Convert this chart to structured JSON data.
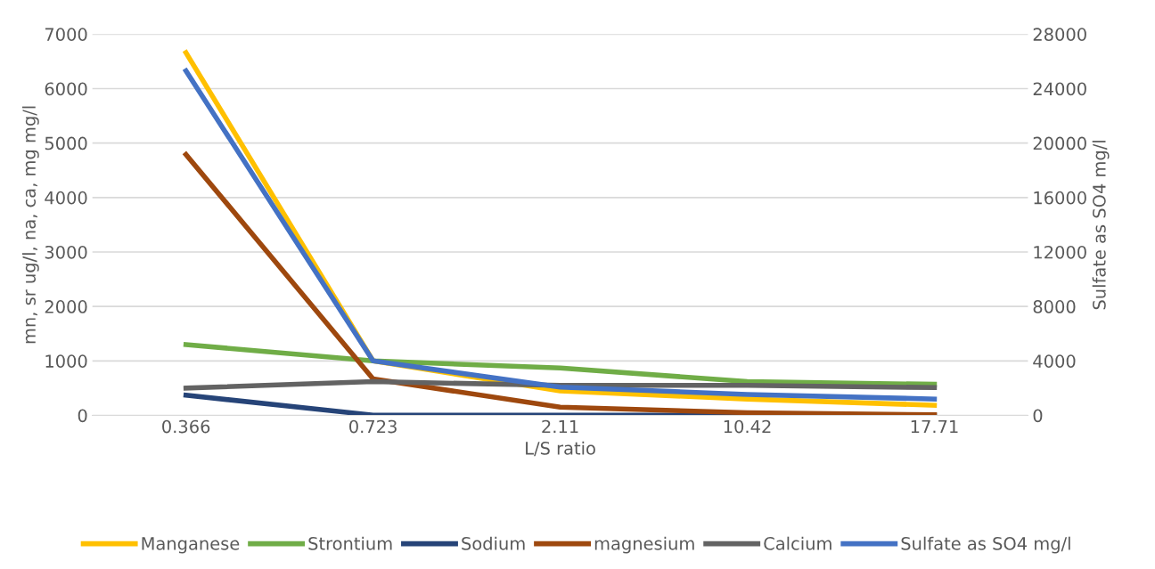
{
  "chart_data": {
    "type": "line",
    "categories": [
      "0.366",
      "0.723",
      "2.11",
      "10.42",
      "17.71"
    ],
    "xlabel": "L/S ratio",
    "ylabel": "mn, sr ug/l, na, ca, mg mg/l",
    "y2label": "Sulfate as SO4 mg/l",
    "ylim": [
      0,
      7000
    ],
    "yticks": [
      0,
      1000,
      2000,
      3000,
      4000,
      5000,
      6000,
      7000
    ],
    "y2lim": [
      0,
      28000
    ],
    "y2ticks": [
      0,
      4000,
      8000,
      12000,
      16000,
      20000,
      24000,
      28000
    ],
    "grid": "y",
    "legend": "bottom",
    "marker": "none",
    "line_style": "solid",
    "series": [
      {
        "name": "Manganese",
        "color": "#ffc000",
        "values": [
          6660,
          1000,
          450,
          300,
          185
        ]
      },
      {
        "name": "Strontium",
        "color": "#70ad47",
        "values": [
          1300,
          1000,
          870,
          620,
          570
        ]
      },
      {
        "name": "Sodium",
        "color": "#264478",
        "values": [
          370,
          5,
          5,
          5,
          5
        ]
      },
      {
        "name": "magnesium",
        "color": "#9e480e",
        "values": [
          4790,
          670,
          150,
          50,
          10
        ]
      },
      {
        "name": "Calcium",
        "color": "#636363",
        "values": [
          500,
          620,
          550,
          550,
          510
        ]
      },
      {
        "name": "Sulfate as SO4 mg/l",
        "color": "#4472c4",
        "axis": "y2",
        "values": [
          25300,
          4000,
          2070,
          1540,
          1200
        ]
      }
    ]
  }
}
